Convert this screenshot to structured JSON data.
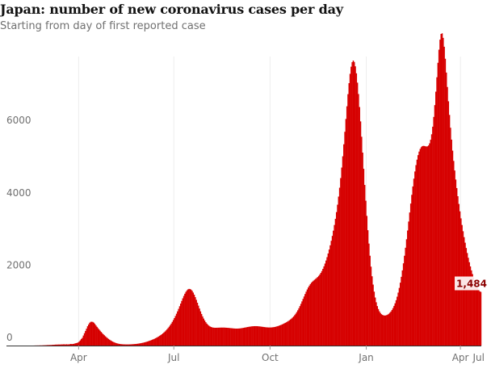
{
  "header": {
    "title": "Japan: number of new coronavirus cases per day",
    "subtitle": "Starting from day of first reported case"
  },
  "chart_data": {
    "type": "bar",
    "title": "Japan: number of new coronavirus cases per day",
    "subtitle": "Starting from day of first reported case",
    "xlabel": "",
    "ylabel": "",
    "ylim": [
      0,
      7900
    ],
    "y_ticks": [
      0,
      2000,
      4000,
      6000
    ],
    "x_ticks": [
      {
        "label": "Apr",
        "day": 69
      },
      {
        "label": "Jul",
        "day": 160
      },
      {
        "label": "Oct",
        "day": 252
      },
      {
        "label": "Jan",
        "day": 344
      },
      {
        "label": "Apr",
        "day": 434
      },
      {
        "label": "Jul",
        "day": 525
      }
    ],
    "grid": "vertical",
    "bar_color": "#d60000",
    "series": [
      {
        "values_day_start": 0,
        "values": [
          0,
          0,
          0,
          0,
          0,
          0,
          0,
          0,
          0,
          0,
          0,
          0,
          0,
          0,
          0,
          0,
          0,
          0,
          0,
          0,
          0,
          0,
          0,
          0,
          0,
          0,
          1,
          2,
          2,
          3,
          3,
          4,
          5,
          5,
          6,
          8,
          9,
          10,
          12,
          14,
          14,
          16,
          15,
          19,
          20,
          22,
          25,
          27,
          26,
          29,
          29,
          28,
          32,
          31,
          34,
          34,
          30,
          36,
          30,
          34,
          37,
          44,
          40,
          44,
          49,
          58,
          66,
          74,
          83,
          111,
          143,
          182,
          213,
          277,
          341,
          404,
          467,
          533,
          583,
          630,
          655,
          658,
          653,
          632,
          597,
          556,
          518,
          481,
          445,
          410,
          376,
          344,
          313,
          285,
          257,
          231,
          207,
          184,
          162,
          143,
          125,
          109,
          95,
          82,
          71,
          62,
          54,
          48,
          43,
          39,
          36,
          34,
          33,
          32,
          31,
          31,
          31,
          32,
          33,
          35,
          37,
          39,
          41,
          44,
          47,
          51,
          55,
          60,
          65,
          71,
          77,
          85,
          92,
          100,
          109,
          119,
          129,
          139,
          151,
          163,
          175,
          188,
          203,
          218,
          234,
          252,
          271,
          291,
          312,
          336,
          361,
          388,
          418,
          450,
          484,
          521,
          562,
          606,
          654,
          705,
          759,
          817,
          880,
          945,
          1014,
          1087,
          1160,
          1233,
          1305,
          1372,
          1432,
          1484,
          1525,
          1553,
          1566,
          1563,
          1545,
          1512,
          1465,
          1406,
          1338,
          1263,
          1184,
          1103,
          1023,
          945,
          873,
          806,
          746,
          693,
          646,
          607,
          575,
          549,
          529,
          514,
          504,
          497,
          493,
          492,
          492,
          493,
          494,
          495,
          496,
          497,
          497,
          497,
          496,
          494,
          492,
          490,
          487,
          484,
          481,
          478,
          475,
          472,
          470,
          469,
          469,
          470,
          472,
          475,
          479,
          484,
          489,
          495,
          500,
          506,
          512,
          517,
          522,
          526,
          530,
          533,
          535,
          536,
          536,
          535,
          533,
          530,
          527,
          523,
          519,
          515,
          511,
          507,
          504,
          502,
          500,
          500,
          500,
          502,
          505,
          509,
          514,
          521,
          529,
          538,
          548,
          559,
          571,
          584,
          597,
          612,
          627,
          643,
          660,
          679,
          699,
          721,
          746,
          774,
          805,
          840,
          880,
          925,
          975,
          1030,
          1090,
          1153,
          1220,
          1288,
          1356,
          1424,
          1489,
          1550,
          1606,
          1656,
          1699,
          1736,
          1767,
          1794,
          1819,
          1842,
          1867,
          1894,
          1926,
          1963,
          2008,
          2060,
          2120,
          2189,
          2266,
          2351,
          2444,
          2545,
          2654,
          2771,
          2896,
          3031,
          3176,
          3333,
          3503,
          3690,
          3894,
          4118,
          4363,
          4630,
          4920,
          5232,
          5563,
          5909,
          6263,
          6614,
          6949,
          7253,
          7511,
          7708,
          7833,
          7877,
          7838,
          7718,
          7525,
          7267,
          6953,
          6593,
          6196,
          5772,
          5333,
          4886,
          4440,
          4003,
          3584,
          3188,
          2819,
          2483,
          2181,
          1915,
          1685,
          1490,
          1328,
          1196,
          1091,
          1009,
          946,
          900,
          867,
          846,
          834,
          830,
          833,
          842,
          857,
          878,
          906,
          940,
          983,
          1034,
          1096,
          1168,
          1253,
          1351,
          1464,
          1593,
          1738,
          1900,
          2078,
          2273,
          2482,
          2704,
          2938,
          3180,
          3428,
          3678,
          3925,
          4167,
          4398,
          4614,
          4812,
          4988,
          5139,
          5264,
          5362,
          5435,
          5483,
          5510,
          5519,
          5516,
          5508,
          5502,
          5507,
          5532,
          5589,
          5689,
          5840,
          6050,
          6320,
          6646,
          7018,
          7416,
          7816,
          8178,
          8456,
          8614,
          8630,
          8505,
          8260,
          7928,
          7546,
          7147,
          6752,
          6375,
          6021,
          5692,
          5387,
          5104,
          4839,
          4589,
          4353,
          4128,
          3914,
          3710,
          3516,
          3333,
          3160,
          2997,
          2843,
          2697,
          2558,
          2427,
          2303,
          2187,
          2078,
          1976,
          1882,
          1796,
          1718,
          1648,
          1588,
          1537,
          1497,
          1484
        ]
      }
    ],
    "last_value_label": "1,484"
  }
}
